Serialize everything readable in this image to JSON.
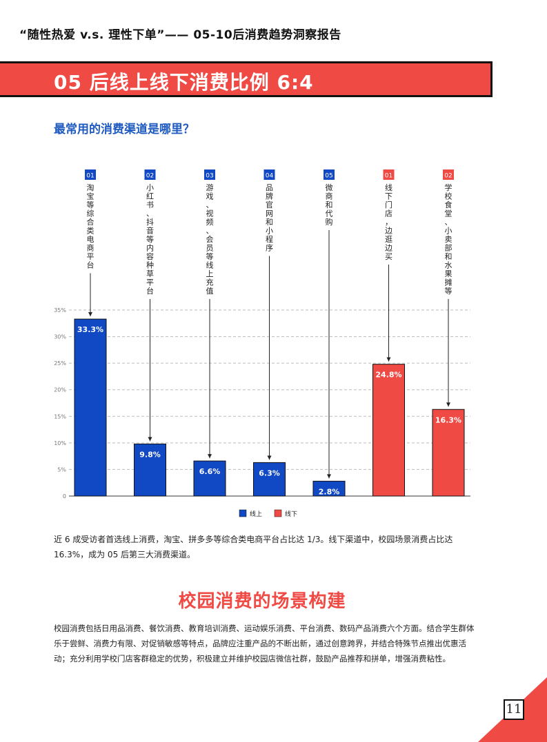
{
  "header": {
    "report_title": "“随性热爱 v.s. 理性下单”—— 05-10后消费趋势洞察报告"
  },
  "banner": {
    "title": "05 后线上线下消费比例 6:4"
  },
  "section": {
    "subtitle": "最常用的消费渠道是哪里？"
  },
  "chart_data": {
    "type": "bar",
    "title": "",
    "xlabel": "",
    "ylabel": "",
    "ylim": [
      0,
      35
    ],
    "yticks": [
      "0",
      "5%",
      "10%",
      "15%",
      "20%",
      "25%",
      "30%",
      "35%"
    ],
    "grid": true,
    "legend_position": "bottom",
    "colors": {
      "线上": "#1148c4",
      "线下": "#f04a45"
    },
    "legend": [
      "线上",
      "线下"
    ],
    "bars": [
      {
        "badge": "01",
        "group": "线上",
        "label": "淘宝等综合类电商平台",
        "value": 33.3,
        "value_label": "33.3%"
      },
      {
        "badge": "02",
        "group": "线上",
        "label": "小红书、抖音等内容种草平台",
        "value": 9.8,
        "value_label": "9.8%"
      },
      {
        "badge": "03",
        "group": "线上",
        "label": "游戏、视频、会员等线上充值",
        "value": 6.6,
        "value_label": "6.6%"
      },
      {
        "badge": "04",
        "group": "线上",
        "label": "品牌官网和小程序",
        "value": 6.3,
        "value_label": "6.3%"
      },
      {
        "badge": "05",
        "group": "线上",
        "label": "微商和代购",
        "value": 2.8,
        "value_label": "2.8%"
      },
      {
        "badge": "01",
        "group": "线下",
        "label": "线下门店，边逛边买",
        "value": 24.8,
        "value_label": "24.8%"
      },
      {
        "badge": "02",
        "group": "线下",
        "label": "学校食堂、小卖部和水果摊等",
        "value": 16.3,
        "value_label": "16.3%"
      }
    ]
  },
  "paragraph1": "近 6 成受访者首选线上消费，淘宝、拼多多等综合类电商平台占比达 1/3。线下渠道中，校园场景消费占比达 16.3%，成为 05 后第三大消费渠道。",
  "scene": {
    "heading": "校园消费的场景构建",
    "body": "校园消费包括日用品消费、餐饮消费、教育培训消费、运动娱乐消费、平台消费、数码产品消费六个方面。结合学生群体乐于尝鲜、消费力有限、对促销敏感等特点，品牌应注重产品的不断出新，通过创意跨界，并结合特殊节点推出优惠活动；充分利用学校门店客群稳定的优势，积极建立并维护校园店微信社群，鼓励产品推荐和拼单，增强消费粘性。"
  },
  "footer": {
    "page_number": "11"
  }
}
